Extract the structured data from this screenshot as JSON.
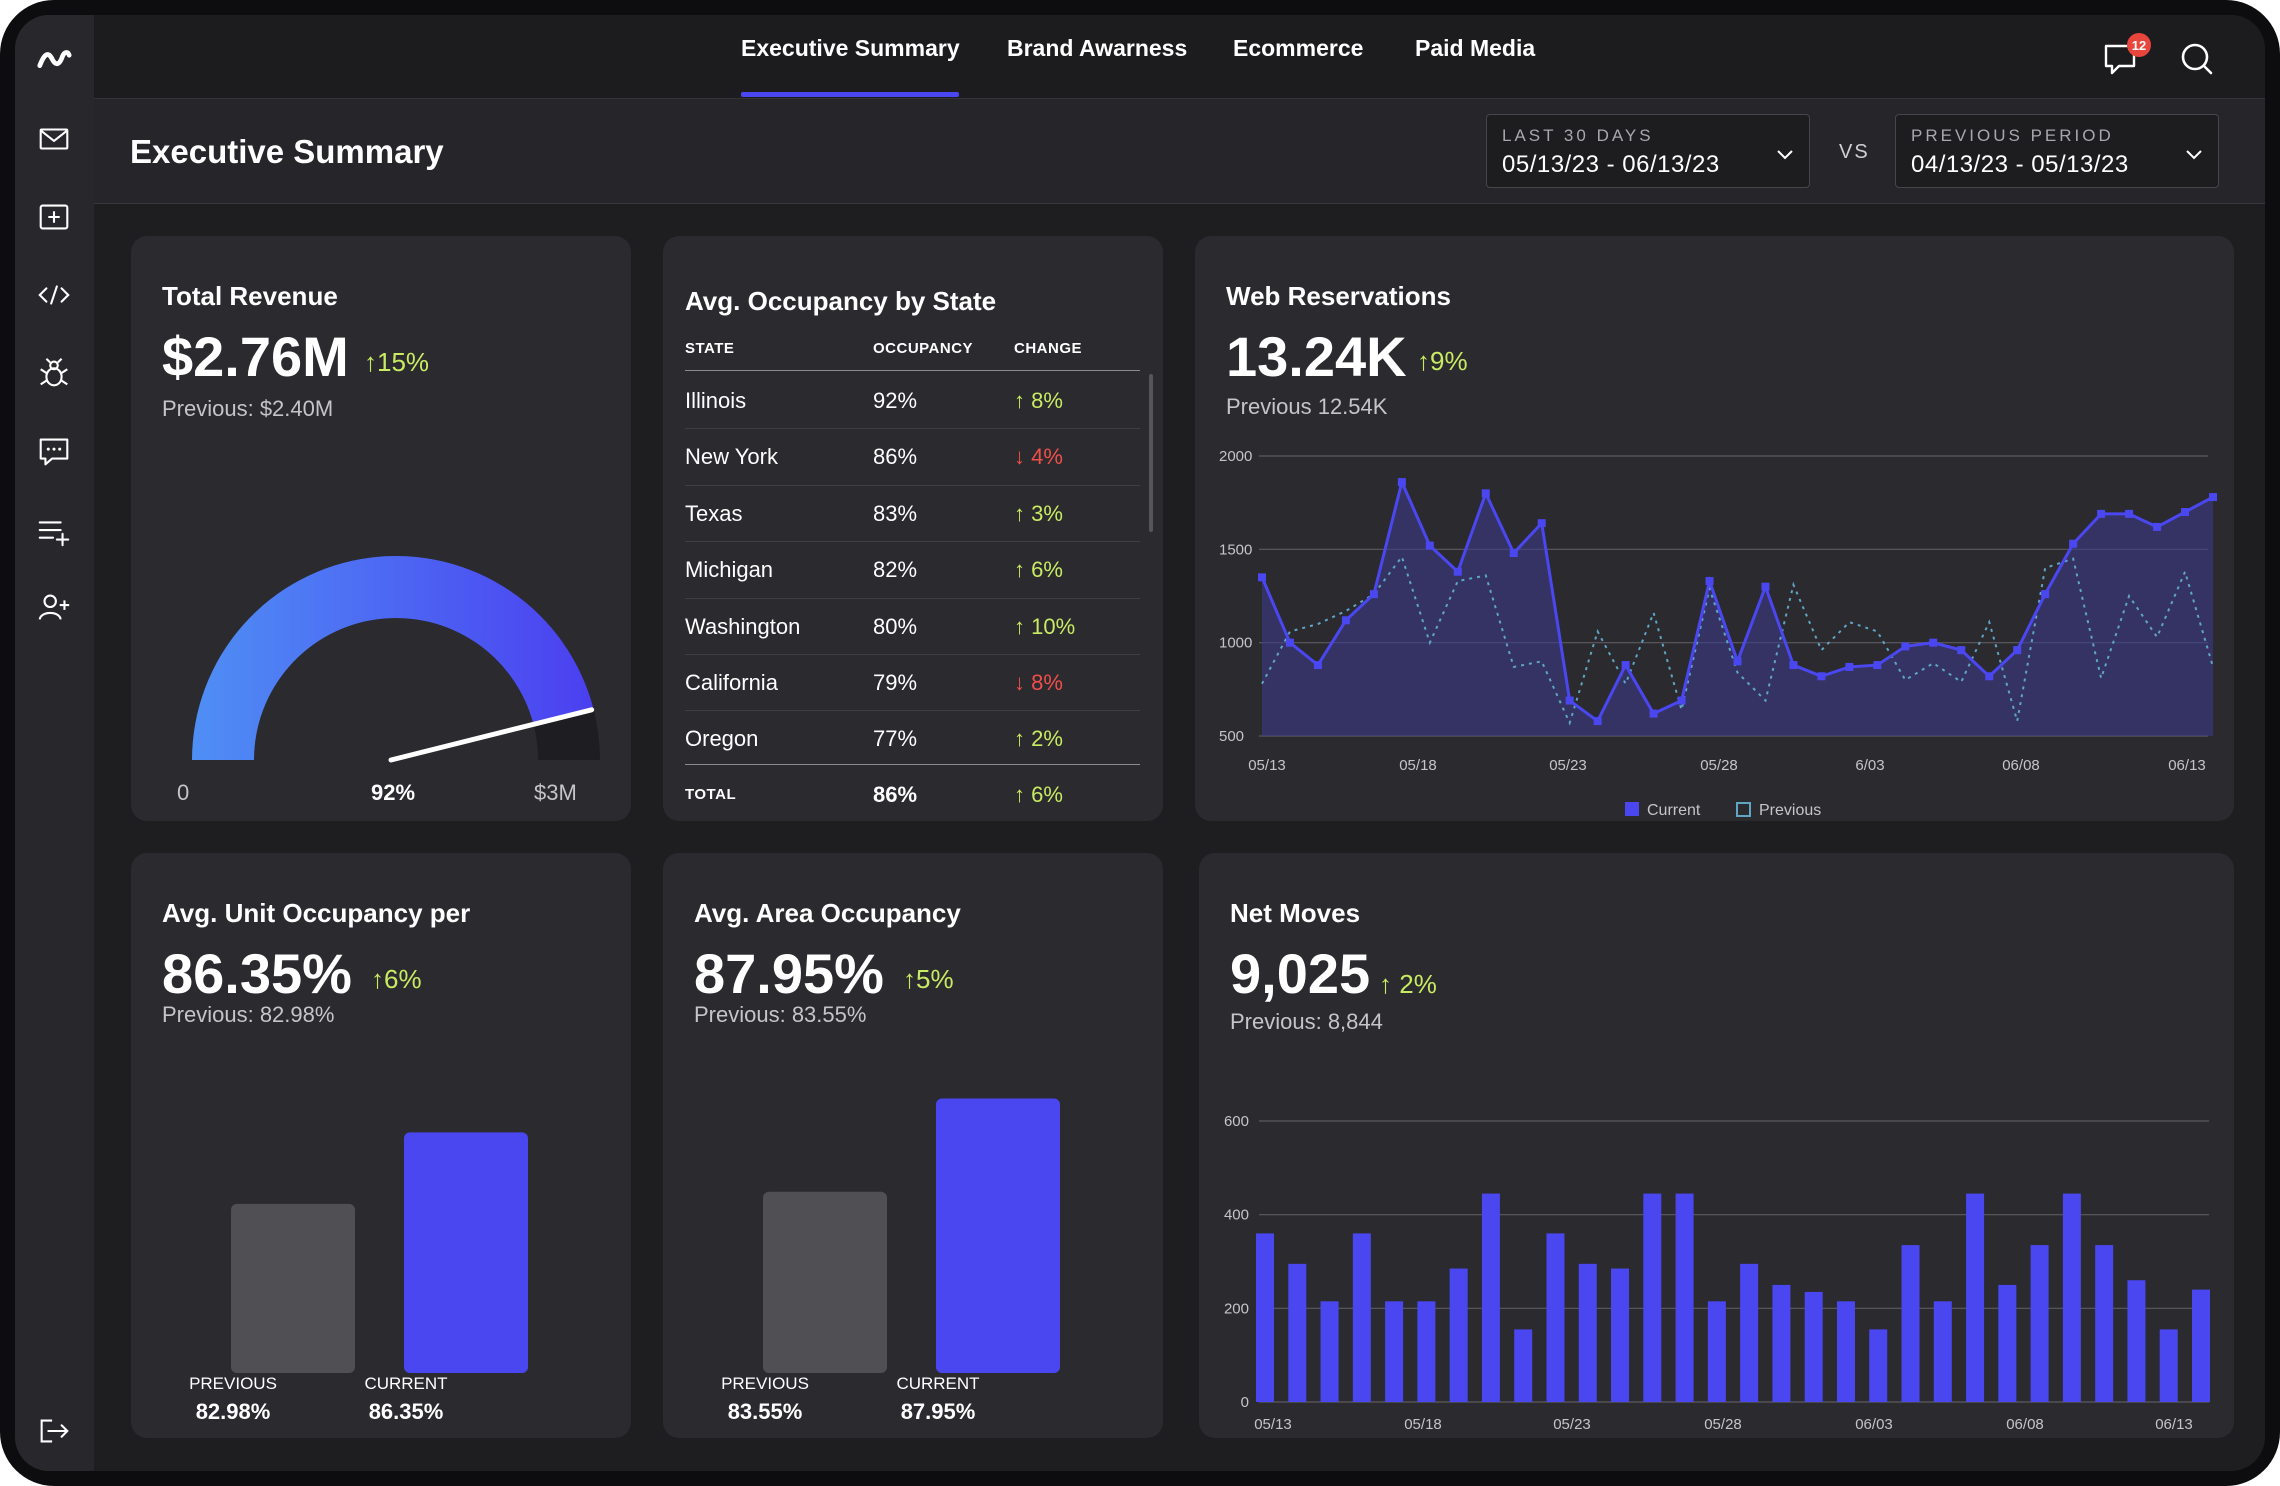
{
  "nav": {
    "tabs": [
      {
        "label": "Executive Summary",
        "active": true
      },
      {
        "label": "Brand Awarness",
        "active": false
      },
      {
        "label": "Ecommerce",
        "active": false
      },
      {
        "label": "Paid Media",
        "active": false
      }
    ],
    "notification_count": "12",
    "accent_color": "#4b47f0"
  },
  "sidebar": {
    "icons": [
      "logo-icon",
      "mail-icon",
      "add-box-icon",
      "code-icon",
      "bug-icon",
      "chat-icon",
      "add-list-icon",
      "add-user-icon",
      "logout-icon"
    ]
  },
  "header": {
    "title": "Executive Summary",
    "current_period": {
      "label": "LAST 30 DAYS",
      "value": "05/13/23 - 06/13/23"
    },
    "vs": "VS",
    "previous_period": {
      "label": "PREVIOUS PERIOD",
      "value": "04/13/23 - 05/13/23"
    }
  },
  "revenue": {
    "title": "Total Revenue",
    "value": "$2.76M",
    "change": "15%",
    "previous": "Previous: $2.40M",
    "gauge_min": "0",
    "gauge_value": "92%",
    "gauge_max": "$3M",
    "gauge_fraction": 0.92
  },
  "occupancy_table": {
    "title": "Avg. Occupancy by State",
    "headers": [
      "STATE",
      "OCCUPANCY",
      "CHANGE"
    ],
    "rows": [
      {
        "state": "Illinois",
        "occupancy": "92%",
        "change": "8%",
        "dir": "up"
      },
      {
        "state": "New York",
        "occupancy": "86%",
        "change": "4%",
        "dir": "down"
      },
      {
        "state": "Texas",
        "occupancy": "83%",
        "change": "3%",
        "dir": "up"
      },
      {
        "state": "Michigan",
        "occupancy": "82%",
        "change": "6%",
        "dir": "up"
      },
      {
        "state": "Washington",
        "occupancy": "80%",
        "change": "10%",
        "dir": "up"
      },
      {
        "state": "California",
        "occupancy": "79%",
        "change": "8%",
        "dir": "down"
      },
      {
        "state": "Oregon",
        "occupancy": "77%",
        "change": "2%",
        "dir": "up"
      }
    ],
    "total": {
      "label": "TOTAL",
      "occupancy": "86%",
      "change": "6%",
      "dir": "up"
    }
  },
  "web_reservations": {
    "title": "Web Reservations",
    "value": "13.24K",
    "change": "9%",
    "previous": "Previous 12.54K",
    "legend_current": "Current",
    "legend_previous": "Previous"
  },
  "unit_occupancy": {
    "title": "Avg. Unit Occupancy per",
    "value": "86.35%",
    "change": "6%",
    "previous": "Previous: 82.98%",
    "bar_previous_label": "PREVIOUS",
    "bar_previous_value": "82.98%",
    "bar_current_label": "CURRENT",
    "bar_current_value": "86.35%"
  },
  "area_occupancy": {
    "title": "Avg. Area Occupancy",
    "value": "87.95%",
    "change": "5%",
    "previous": "Previous: 83.55%",
    "bar_previous_label": "PREVIOUS",
    "bar_previous_value": "83.55%",
    "bar_current_label": "CURRENT",
    "bar_current_value": "87.95%"
  },
  "net_moves": {
    "title": "Net Moves",
    "value": "9,025",
    "change": "2%",
    "previous": "Previous: 8,844"
  },
  "chart_data": [
    {
      "type": "area",
      "ylim": [
        500,
        2000
      ],
      "yticks": [
        "2000",
        "1500",
        "1000",
        "500"
      ],
      "ytick_values": [
        2000,
        1500,
        1000,
        500
      ],
      "xticks": [
        "05/13",
        "05/18",
        "05/23",
        "05/28",
        "6/03",
        "06/08",
        "06/13"
      ],
      "grid": true,
      "legend": "bottom",
      "series": [
        {
          "name": "Current",
          "color": "#4b47f0",
          "values": [
            1350,
            1000,
            880,
            1120,
            1260,
            1860,
            1520,
            1380,
            1800,
            1480,
            1640,
            690,
            580,
            880,
            620,
            690,
            1330,
            900,
            1300,
            880,
            820,
            870,
            880,
            980,
            1000,
            960,
            820,
            960,
            1260,
            1530,
            1690,
            1690,
            1620,
            1700,
            1780
          ]
        },
        {
          "name": "Previous",
          "color": "#5fa5c4",
          "values": [
            780,
            1060,
            1100,
            1170,
            1260,
            1460,
            1000,
            1330,
            1360,
            870,
            900,
            570,
            1060,
            780,
            1160,
            640,
            1290,
            840,
            690,
            1310,
            960,
            1110,
            1060,
            800,
            890,
            790,
            1110,
            580,
            1400,
            1450,
            810,
            1250,
            1030,
            1380,
            870
          ]
        }
      ]
    },
    {
      "type": "bar",
      "ylim": [
        0,
        600
      ],
      "yticks": [
        "600",
        "400",
        "200",
        "0"
      ],
      "ytick_values": [
        600,
        400,
        200,
        0
      ],
      "xticks": [
        "05/13",
        "05/18",
        "05/23",
        "05/28",
        "06/03",
        "06/08",
        "06/13"
      ],
      "grid": true,
      "series": [
        {
          "name": "",
          "color": "#4b47f0",
          "values": [
            360,
            295,
            215,
            360,
            215,
            215,
            285,
            445,
            155,
            360,
            295,
            285,
            445,
            445,
            215,
            295,
            250,
            235,
            215,
            155,
            335,
            215,
            445,
            250,
            335,
            445,
            335,
            260,
            155,
            240
          ]
        }
      ]
    },
    {
      "type": "bar",
      "categories": [
        "PREVIOUS",
        "CURRENT"
      ],
      "values": [
        82.98,
        86.35
      ]
    },
    {
      "type": "bar",
      "categories": [
        "PREVIOUS",
        "CURRENT"
      ],
      "values": [
        83.55,
        87.95
      ]
    }
  ]
}
